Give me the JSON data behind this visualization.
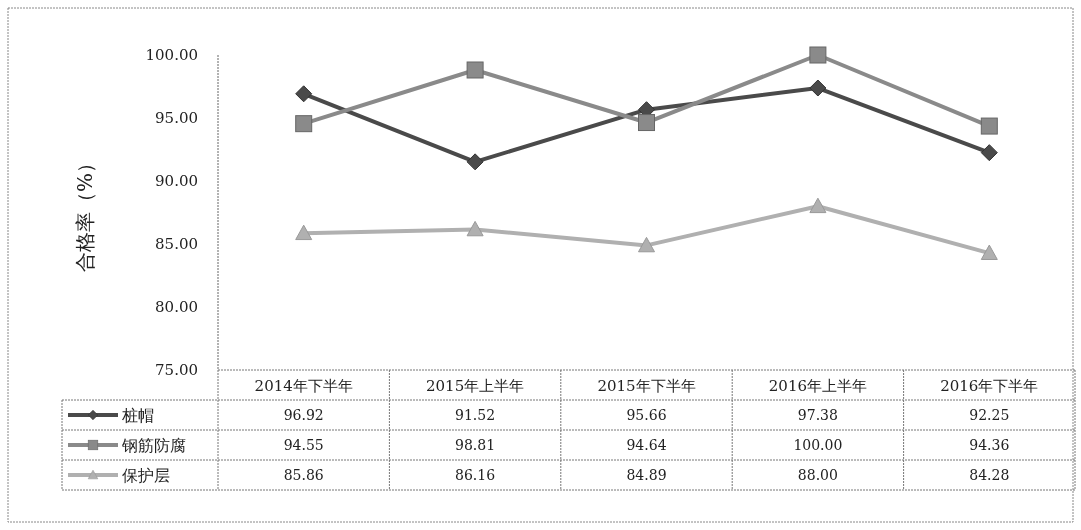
{
  "chart_data": {
    "type": "line",
    "ylabel": "合格率（%）",
    "categories": [
      "2014年下半年",
      "2015年上半年",
      "2015年下半年",
      "2016年上半年",
      "2016年下半年"
    ],
    "series": [
      {
        "name": "桩帽",
        "color": "#4a4a4a",
        "marker": "diamond",
        "values": [
          96.92,
          91.52,
          95.66,
          97.38,
          92.25
        ],
        "value_labels": [
          "96.92",
          "91.52",
          "95.66",
          "97.38",
          "92.25"
        ]
      },
      {
        "name": "钢筋防腐",
        "color": "#8a8a8a",
        "marker": "square",
        "values": [
          94.55,
          98.81,
          94.64,
          100.0,
          94.36
        ],
        "value_labels": [
          "94.55",
          "98.81",
          "94.64",
          "100.00",
          "94.36"
        ]
      },
      {
        "name": "保护层",
        "color": "#b0b0b0",
        "marker": "triangle",
        "values": [
          85.86,
          86.16,
          84.89,
          88.0,
          84.28
        ],
        "value_labels": [
          "85.86",
          "86.16",
          "84.89",
          "88.00",
          "84.28"
        ]
      }
    ],
    "ylim": [
      75,
      100
    ],
    "yticks": [
      {
        "value": 75,
        "label": "75.00"
      },
      {
        "value": 80,
        "label": "80.00"
      },
      {
        "value": 85,
        "label": "85.00"
      },
      {
        "value": 90,
        "label": "90.00"
      },
      {
        "value": 95,
        "label": "95.00"
      },
      {
        "value": 100,
        "label": "100.00"
      }
    ],
    "grid": false,
    "legend": "bottom"
  }
}
